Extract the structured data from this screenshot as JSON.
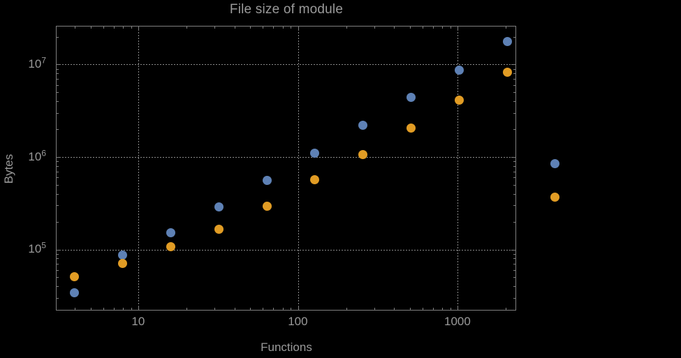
{
  "title": "File size of module",
  "colors": {
    "background": "#000000",
    "frame": "#7f7f7f",
    "grid": "#8a8a8a",
    "text": "#9a9a9a",
    "series_blue": "#5e81b5",
    "series_orange": "#e19c24"
  },
  "chart_data": {
    "type": "scatter",
    "title": "File size of module",
    "xlabel": "Functions",
    "ylabel": "Bytes",
    "x_scale": "log",
    "y_scale": "log",
    "grid": "dotted",
    "legend": "none",
    "xlim": [
      3.05,
      2333
    ],
    "ylim": [
      21700,
      26000000
    ],
    "x_ticks": [
      {
        "value": 10,
        "label": "10"
      },
      {
        "value": 100,
        "label": "100"
      },
      {
        "value": 1000,
        "label": "1000"
      }
    ],
    "y_ticks": [
      {
        "value": 10000000,
        "base": "10",
        "exp": "7"
      },
      {
        "value": 1000000,
        "base": "10",
        "exp": "6"
      },
      {
        "value": 100000,
        "base": "10",
        "exp": "5"
      }
    ],
    "series": [
      {
        "name": "blue",
        "color": "#5e81b5",
        "x": [
          4,
          8,
          16,
          32,
          64,
          128,
          256,
          512,
          1024,
          2048,
          4096
        ],
        "y": [
          34000,
          87000,
          150000,
          285000,
          550000,
          1100000,
          2200000,
          4400000,
          8700000,
          17500000,
          840000
        ]
      },
      {
        "name": "orange",
        "color": "#e19c24",
        "x": [
          4,
          8,
          16,
          32,
          64,
          128,
          256,
          512,
          1024,
          2048,
          4096
        ],
        "y": [
          50000,
          70000,
          107000,
          165000,
          290000,
          560000,
          1050000,
          2050000,
          4100000,
          8200000,
          365000
        ]
      }
    ]
  }
}
